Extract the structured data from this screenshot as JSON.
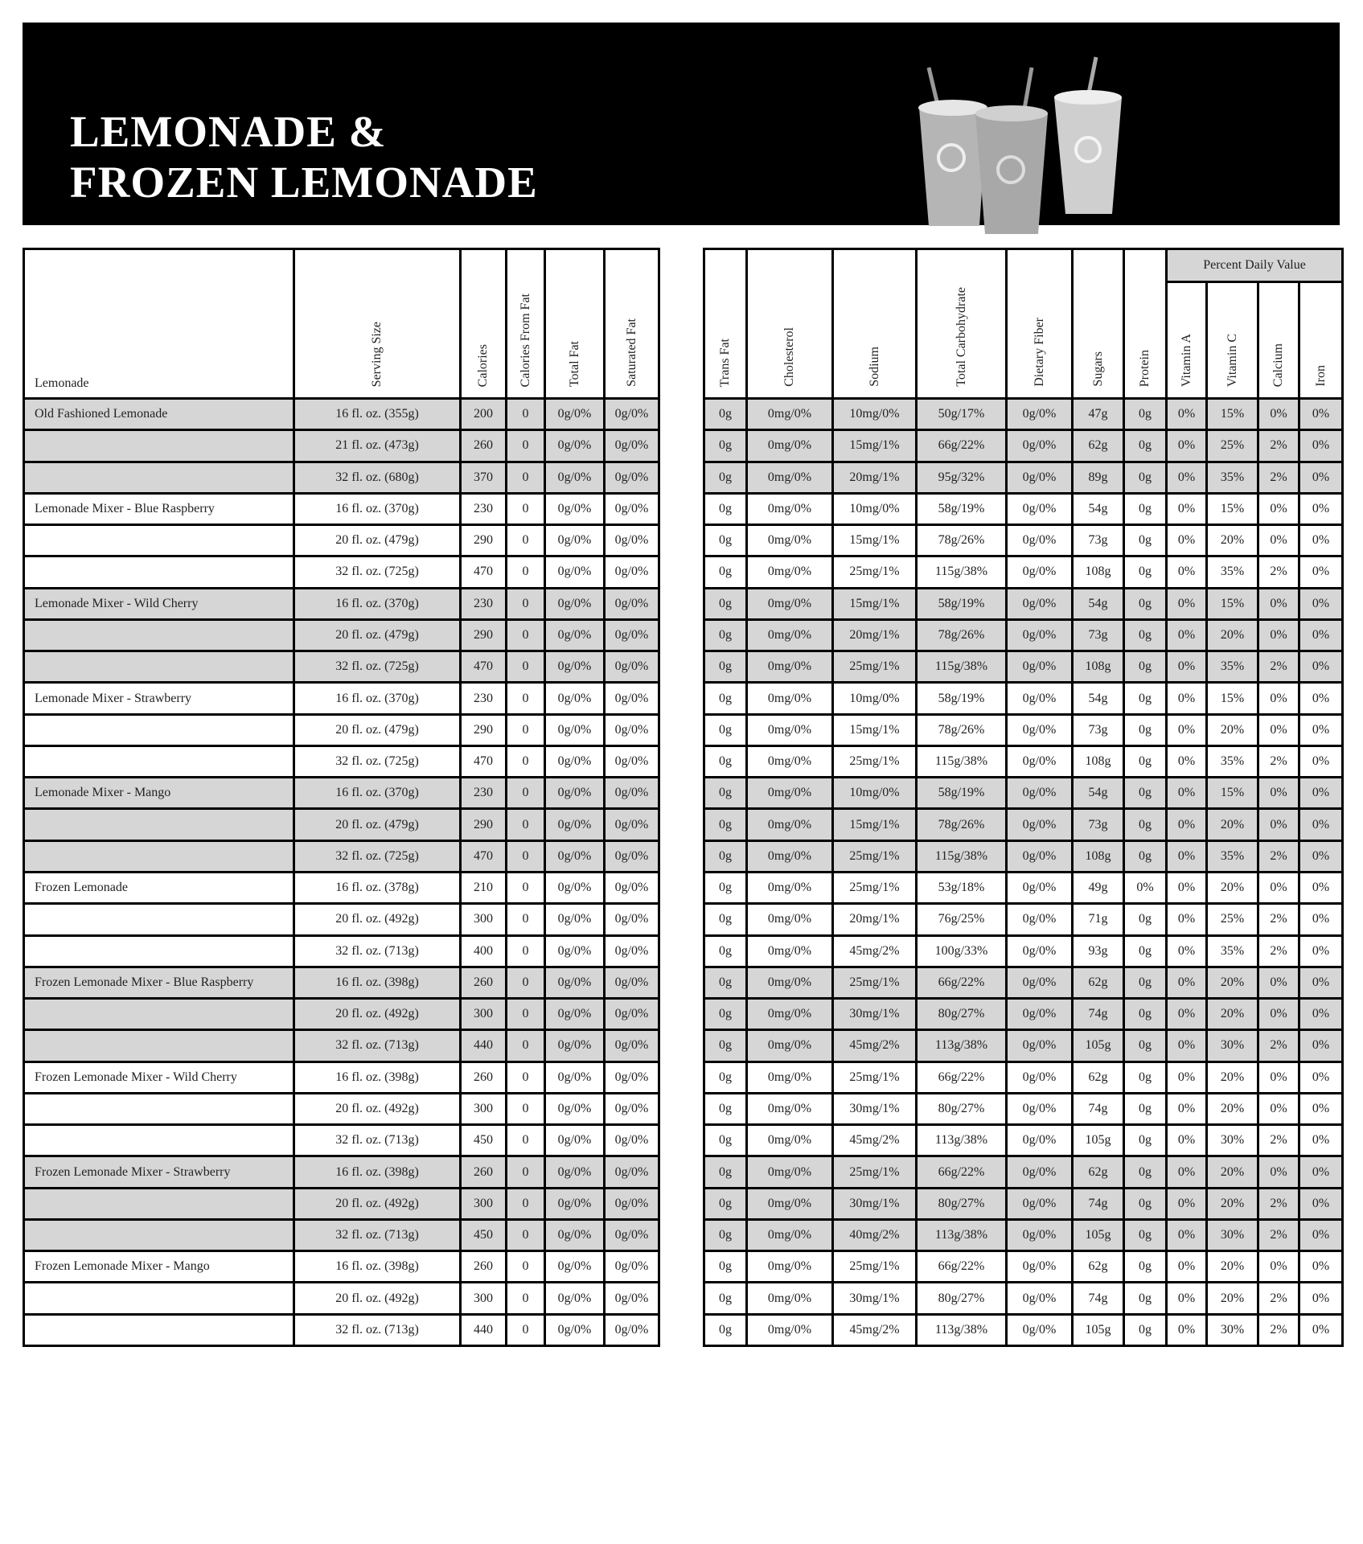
{
  "header": {
    "title_line1": "LEMONADE &",
    "title_line2": "FROZEN LEMONADE",
    "background": "#000000"
  },
  "left_table": {
    "corner_label": "Lemonade",
    "columns": [
      "Serving Size",
      "Calories",
      "Calories From Fat",
      "Total Fat",
      "Saturated Fat"
    ]
  },
  "right_table": {
    "columns": [
      "Trans Fat",
      "Cholesterol",
      "Sodium",
      "Total Carbohydrate",
      "Dietary Fiber",
      "Sugars",
      "Protein"
    ],
    "group_label": "Percent Daily Value",
    "pdv_columns": [
      "Vitamin A",
      "Vitamin C",
      "Calcium",
      "Iron"
    ]
  },
  "colors": {
    "shaded_row": "#d6d6d6",
    "border": "#000000"
  },
  "rows": [
    [
      "Old Fashioned Lemonade",
      "16 fl. oz. (355g)",
      "200",
      "0",
      "0g/0%",
      "0g/0%",
      "0g",
      "0mg/0%",
      "10mg/0%",
      "50g/17%",
      "0g/0%",
      "47g",
      "0g",
      "0%",
      "15%",
      "0%",
      "0%"
    ],
    [
      "",
      "21 fl. oz. (473g)",
      "260",
      "0",
      "0g/0%",
      "0g/0%",
      "0g",
      "0mg/0%",
      "15mg/1%",
      "66g/22%",
      "0g/0%",
      "62g",
      "0g",
      "0%",
      "25%",
      "2%",
      "0%"
    ],
    [
      "",
      "32 fl. oz. (680g)",
      "370",
      "0",
      "0g/0%",
      "0g/0%",
      "0g",
      "0mg/0%",
      "20mg/1%",
      "95g/32%",
      "0g/0%",
      "89g",
      "0g",
      "0%",
      "35%",
      "2%",
      "0%"
    ],
    [
      "Lemonade Mixer - Blue Raspberry",
      "16 fl. oz. (370g)",
      "230",
      "0",
      "0g/0%",
      "0g/0%",
      "0g",
      "0mg/0%",
      "10mg/0%",
      "58g/19%",
      "0g/0%",
      "54g",
      "0g",
      "0%",
      "15%",
      "0%",
      "0%"
    ],
    [
      "",
      "20 fl. oz. (479g)",
      "290",
      "0",
      "0g/0%",
      "0g/0%",
      "0g",
      "0mg/0%",
      "15mg/1%",
      "78g/26%",
      "0g/0%",
      "73g",
      "0g",
      "0%",
      "20%",
      "0%",
      "0%"
    ],
    [
      "",
      "32 fl. oz. (725g)",
      "470",
      "0",
      "0g/0%",
      "0g/0%",
      "0g",
      "0mg/0%",
      "25mg/1%",
      "115g/38%",
      "0g/0%",
      "108g",
      "0g",
      "0%",
      "35%",
      "2%",
      "0%"
    ],
    [
      "Lemonade Mixer - Wild Cherry",
      "16 fl. oz. (370g)",
      "230",
      "0",
      "0g/0%",
      "0g/0%",
      "0g",
      "0mg/0%",
      "15mg/1%",
      "58g/19%",
      "0g/0%",
      "54g",
      "0g",
      "0%",
      "15%",
      "0%",
      "0%"
    ],
    [
      "",
      "20 fl. oz. (479g)",
      "290",
      "0",
      "0g/0%",
      "0g/0%",
      "0g",
      "0mg/0%",
      "20mg/1%",
      "78g/26%",
      "0g/0%",
      "73g",
      "0g",
      "0%",
      "20%",
      "0%",
      "0%"
    ],
    [
      "",
      "32 fl. oz. (725g)",
      "470",
      "0",
      "0g/0%",
      "0g/0%",
      "0g",
      "0mg/0%",
      "25mg/1%",
      "115g/38%",
      "0g/0%",
      "108g",
      "0g",
      "0%",
      "35%",
      "2%",
      "0%"
    ],
    [
      "Lemonade Mixer - Strawberry",
      "16 fl. oz. (370g)",
      "230",
      "0",
      "0g/0%",
      "0g/0%",
      "0g",
      "0mg/0%",
      "10mg/0%",
      "58g/19%",
      "0g/0%",
      "54g",
      "0g",
      "0%",
      "15%",
      "0%",
      "0%"
    ],
    [
      "",
      "20 fl. oz. (479g)",
      "290",
      "0",
      "0g/0%",
      "0g/0%",
      "0g",
      "0mg/0%",
      "15mg/1%",
      "78g/26%",
      "0g/0%",
      "73g",
      "0g",
      "0%",
      "20%",
      "0%",
      "0%"
    ],
    [
      "",
      "32 fl. oz. (725g)",
      "470",
      "0",
      "0g/0%",
      "0g/0%",
      "0g",
      "0mg/0%",
      "25mg/1%",
      "115g/38%",
      "0g/0%",
      "108g",
      "0g",
      "0%",
      "35%",
      "2%",
      "0%"
    ],
    [
      "Lemonade Mixer - Mango",
      "16 fl. oz. (370g)",
      "230",
      "0",
      "0g/0%",
      "0g/0%",
      "0g",
      "0mg/0%",
      "10mg/0%",
      "58g/19%",
      "0g/0%",
      "54g",
      "0g",
      "0%",
      "15%",
      "0%",
      "0%"
    ],
    [
      "",
      "20 fl. oz. (479g)",
      "290",
      "0",
      "0g/0%",
      "0g/0%",
      "0g",
      "0mg/0%",
      "15mg/1%",
      "78g/26%",
      "0g/0%",
      "73g",
      "0g",
      "0%",
      "20%",
      "0%",
      "0%"
    ],
    [
      "",
      "32 fl. oz. (725g)",
      "470",
      "0",
      "0g/0%",
      "0g/0%",
      "0g",
      "0mg/0%",
      "25mg/1%",
      "115g/38%",
      "0g/0%",
      "108g",
      "0g",
      "0%",
      "35%",
      "2%",
      "0%"
    ],
    [
      "Frozen Lemonade",
      "16 fl. oz. (378g)",
      "210",
      "0",
      "0g/0%",
      "0g/0%",
      "0g",
      "0mg/0%",
      "25mg/1%",
      "53g/18%",
      "0g/0%",
      "49g",
      "0%",
      "0%",
      "20%",
      "0%",
      "0%"
    ],
    [
      "",
      "20 fl. oz. (492g)",
      "300",
      "0",
      "0g/0%",
      "0g/0%",
      "0g",
      "0mg/0%",
      "20mg/1%",
      "76g/25%",
      "0g/0%",
      "71g",
      "0g",
      "0%",
      "25%",
      "2%",
      "0%"
    ],
    [
      "",
      "32 fl. oz. (713g)",
      "400",
      "0",
      "0g/0%",
      "0g/0%",
      "0g",
      "0mg/0%",
      "45mg/2%",
      "100g/33%",
      "0g/0%",
      "93g",
      "0g",
      "0%",
      "35%",
      "2%",
      "0%"
    ],
    [
      "Frozen Lemonade Mixer - Blue Raspberry",
      "16 fl. oz. (398g)",
      "260",
      "0",
      "0g/0%",
      "0g/0%",
      "0g",
      "0mg/0%",
      "25mg/1%",
      "66g/22%",
      "0g/0%",
      "62g",
      "0g",
      "0%",
      "20%",
      "0%",
      "0%"
    ],
    [
      "",
      "20 fl. oz. (492g)",
      "300",
      "0",
      "0g/0%",
      "0g/0%",
      "0g",
      "0mg/0%",
      "30mg/1%",
      "80g/27%",
      "0g/0%",
      "74g",
      "0g",
      "0%",
      "20%",
      "0%",
      "0%"
    ],
    [
      "",
      "32 fl. oz. (713g)",
      "440",
      "0",
      "0g/0%",
      "0g/0%",
      "0g",
      "0mg/0%",
      "45mg/2%",
      "113g/38%",
      "0g/0%",
      "105g",
      "0g",
      "0%",
      "30%",
      "2%",
      "0%"
    ],
    [
      "Frozen Lemonade Mixer - Wild Cherry",
      "16 fl. oz. (398g)",
      "260",
      "0",
      "0g/0%",
      "0g/0%",
      "0g",
      "0mg/0%",
      "25mg/1%",
      "66g/22%",
      "0g/0%",
      "62g",
      "0g",
      "0%",
      "20%",
      "0%",
      "0%"
    ],
    [
      "",
      "20 fl. oz. (492g)",
      "300",
      "0",
      "0g/0%",
      "0g/0%",
      "0g",
      "0mg/0%",
      "30mg/1%",
      "80g/27%",
      "0g/0%",
      "74g",
      "0g",
      "0%",
      "20%",
      "0%",
      "0%"
    ],
    [
      "",
      "32 fl. oz. (713g)",
      "450",
      "0",
      "0g/0%",
      "0g/0%",
      "0g",
      "0mg/0%",
      "45mg/2%",
      "113g/38%",
      "0g/0%",
      "105g",
      "0g",
      "0%",
      "30%",
      "2%",
      "0%"
    ],
    [
      "Frozen Lemonade Mixer - Strawberry",
      "16 fl. oz. (398g)",
      "260",
      "0",
      "0g/0%",
      "0g/0%",
      "0g",
      "0mg/0%",
      "25mg/1%",
      "66g/22%",
      "0g/0%",
      "62g",
      "0g",
      "0%",
      "20%",
      "0%",
      "0%"
    ],
    [
      "",
      "20 fl. oz. (492g)",
      "300",
      "0",
      "0g/0%",
      "0g/0%",
      "0g",
      "0mg/0%",
      "30mg/1%",
      "80g/27%",
      "0g/0%",
      "74g",
      "0g",
      "0%",
      "20%",
      "2%",
      "0%"
    ],
    [
      "",
      "32 fl. oz. (713g)",
      "450",
      "0",
      "0g/0%",
      "0g/0%",
      "0g",
      "0mg/0%",
      "40mg/2%",
      "113g/38%",
      "0g/0%",
      "105g",
      "0g",
      "0%",
      "30%",
      "2%",
      "0%"
    ],
    [
      "Frozen Lemonade Mixer - Mango",
      "16 fl. oz. (398g)",
      "260",
      "0",
      "0g/0%",
      "0g/0%",
      "0g",
      "0mg/0%",
      "25mg/1%",
      "66g/22%",
      "0g/0%",
      "62g",
      "0g",
      "0%",
      "20%",
      "0%",
      "0%"
    ],
    [
      "",
      "20 fl. oz. (492g)",
      "300",
      "0",
      "0g/0%",
      "0g/0%",
      "0g",
      "0mg/0%",
      "30mg/1%",
      "80g/27%",
      "0g/0%",
      "74g",
      "0g",
      "0%",
      "20%",
      "2%",
      "0%"
    ],
    [
      "",
      "32 fl. oz. (713g)",
      "440",
      "0",
      "0g/0%",
      "0g/0%",
      "0g",
      "0mg/0%",
      "45mg/2%",
      "113g/38%",
      "0g/0%",
      "105g",
      "0g",
      "0%",
      "30%",
      "2%",
      "0%"
    ]
  ]
}
